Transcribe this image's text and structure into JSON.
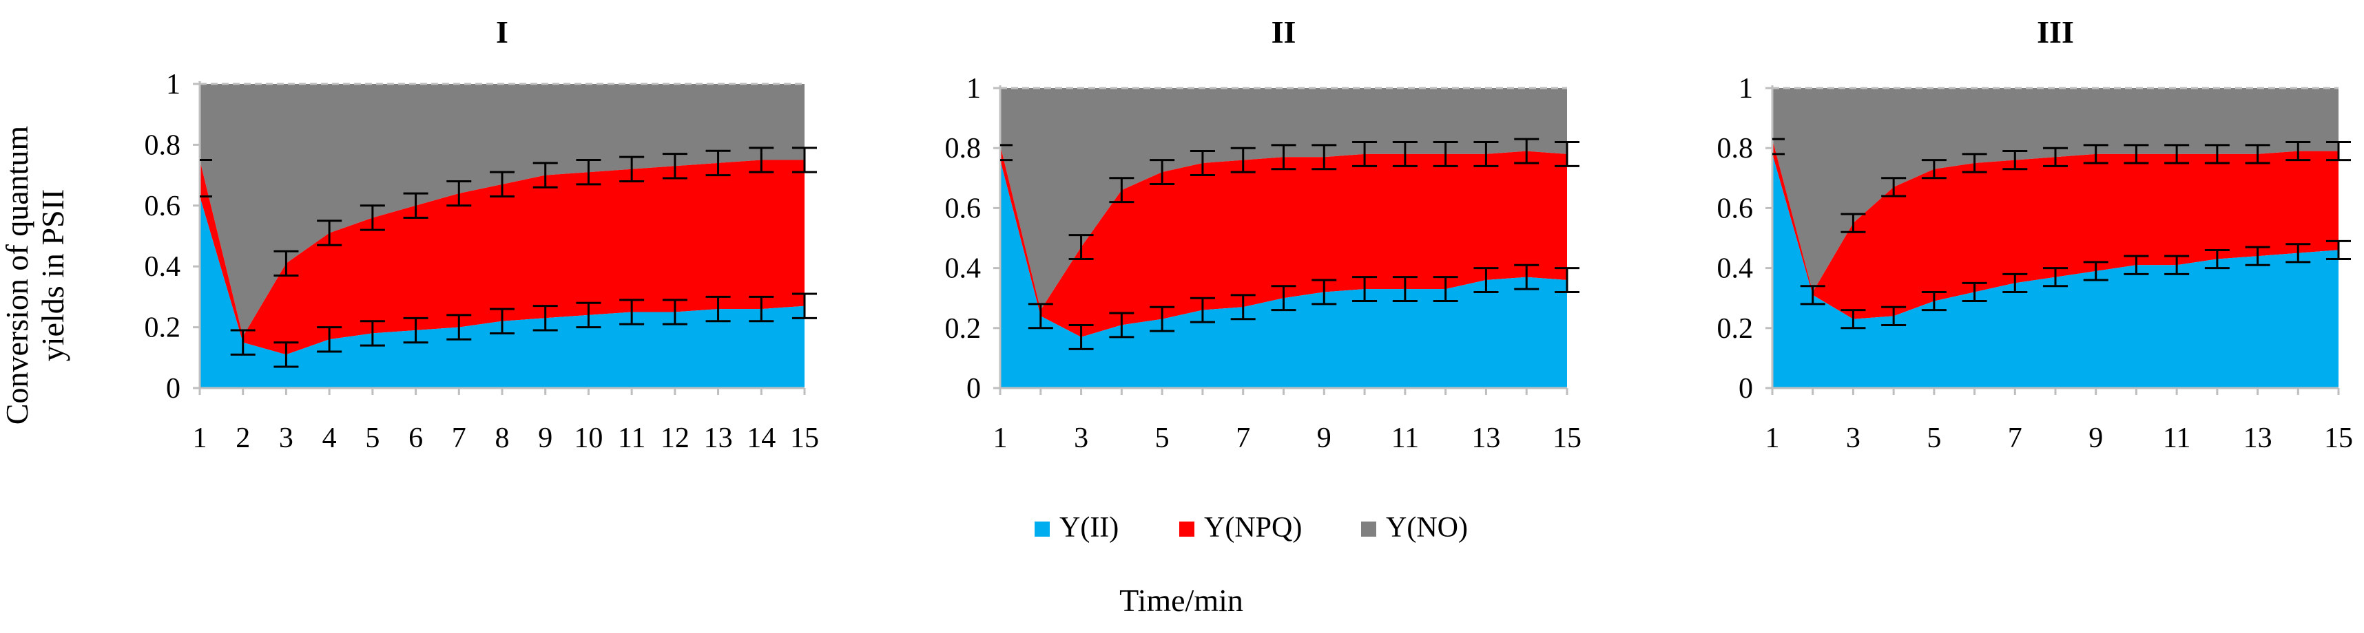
{
  "figure": {
    "ylabel_line1": "Conversion of quantum",
    "ylabel_line2": "yields in PSII",
    "xlabel": "Time/min"
  },
  "legend": {
    "items": [
      {
        "label": "Y(II)",
        "color": "#00AEEF"
      },
      {
        "label": "Y(NPQ)",
        "color": "#FF0000"
      },
      {
        "label": "Y(NO)",
        "color": "#808080"
      }
    ]
  },
  "colors": {
    "y_ii": "#00AEEF",
    "y_npq": "#FF0000",
    "y_no": "#808080",
    "error_bar": "#000000",
    "axis": "#BFBFBF"
  },
  "chart_data": [
    {
      "type": "area",
      "title": "I",
      "x": [
        1,
        2,
        3,
        4,
        5,
        6,
        7,
        8,
        9,
        10,
        11,
        12,
        13,
        14,
        15
      ],
      "xticks": [
        "1",
        "2",
        "3",
        "4",
        "5",
        "6",
        "7",
        "8",
        "9",
        "10",
        "11",
        "12",
        "13",
        "14",
        "15"
      ],
      "ylim": [
        0,
        1
      ],
      "yticks": [
        "0",
        "0.2",
        "0.4",
        "0.6",
        "0.8",
        "1"
      ],
      "stacked": true,
      "series": [
        {
          "name": "Y(II)",
          "values": [
            0.63,
            0.15,
            0.11,
            0.16,
            0.18,
            0.19,
            0.2,
            0.22,
            0.23,
            0.24,
            0.25,
            0.25,
            0.26,
            0.26,
            0.27
          ],
          "errors": [
            0,
            0.04,
            0.04,
            0.04,
            0.04,
            0.04,
            0.04,
            0.04,
            0.04,
            0.04,
            0.04,
            0.04,
            0.04,
            0.04,
            0.04
          ]
        },
        {
          "name": "Y(NPQ)",
          "values": [
            0.12,
            0.02,
            0.3,
            0.35,
            0.38,
            0.41,
            0.44,
            0.45,
            0.47,
            0.47,
            0.47,
            0.48,
            0.48,
            0.49,
            0.48
          ],
          "errors": [
            0,
            0,
            0.04,
            0.04,
            0.04,
            0.04,
            0.04,
            0.04,
            0.04,
            0.04,
            0.04,
            0.04,
            0.04,
            0.04,
            0.04
          ]
        },
        {
          "name": "Y(NO)",
          "values": [
            0.25,
            0.83,
            0.59,
            0.49,
            0.44,
            0.4,
            0.36,
            0.33,
            0.3,
            0.29,
            0.28,
            0.27,
            0.26,
            0.25,
            0.25
          ]
        }
      ]
    },
    {
      "type": "area",
      "title": "II",
      "x": [
        1,
        2,
        3,
        4,
        5,
        6,
        7,
        8,
        9,
        10,
        11,
        12,
        13,
        14,
        15
      ],
      "xticks": [
        "1",
        "3",
        "5",
        "7",
        "9",
        "11",
        "13",
        "15"
      ],
      "ylim": [
        0,
        1
      ],
      "yticks": [
        "0",
        "0.2",
        "0.4",
        "0.6",
        "0.8",
        "1"
      ],
      "stacked": true,
      "series": [
        {
          "name": "Y(II)",
          "values": [
            0.76,
            0.24,
            0.17,
            0.21,
            0.23,
            0.26,
            0.27,
            0.3,
            0.32,
            0.33,
            0.33,
            0.33,
            0.36,
            0.37,
            0.36
          ],
          "errors": [
            0,
            0.04,
            0.04,
            0.04,
            0.04,
            0.04,
            0.04,
            0.04,
            0.04,
            0.04,
            0.04,
            0.04,
            0.04,
            0.04,
            0.04
          ]
        },
        {
          "name": "Y(NPQ)",
          "values": [
            0.05,
            0.02,
            0.3,
            0.45,
            0.49,
            0.49,
            0.49,
            0.47,
            0.45,
            0.45,
            0.45,
            0.45,
            0.42,
            0.42,
            0.42
          ],
          "errors": [
            0,
            0,
            0.04,
            0.04,
            0.04,
            0.04,
            0.04,
            0.04,
            0.04,
            0.04,
            0.04,
            0.04,
            0.04,
            0.04,
            0.04
          ]
        },
        {
          "name": "Y(NO)",
          "values": [
            0.19,
            0.74,
            0.53,
            0.34,
            0.28,
            0.25,
            0.24,
            0.23,
            0.23,
            0.22,
            0.22,
            0.22,
            0.22,
            0.21,
            0.22
          ]
        }
      ]
    },
    {
      "type": "area",
      "title": "III",
      "x": [
        1,
        2,
        3,
        4,
        5,
        6,
        7,
        8,
        9,
        10,
        11,
        12,
        13,
        14,
        15
      ],
      "xticks": [
        "1",
        "3",
        "5",
        "7",
        "9",
        "11",
        "13",
        "15"
      ],
      "ylim": [
        0,
        1
      ],
      "yticks": [
        "0",
        "0.2",
        "0.4",
        "0.6",
        "0.8",
        "1"
      ],
      "stacked": true,
      "series": [
        {
          "name": "Y(II)",
          "values": [
            0.78,
            0.31,
            0.23,
            0.24,
            0.29,
            0.32,
            0.35,
            0.37,
            0.39,
            0.41,
            0.41,
            0.43,
            0.44,
            0.45,
            0.46
          ],
          "errors": [
            0,
            0.03,
            0.03,
            0.03,
            0.03,
            0.03,
            0.03,
            0.03,
            0.03,
            0.03,
            0.03,
            0.03,
            0.03,
            0.03,
            0.03
          ]
        },
        {
          "name": "Y(NPQ)",
          "values": [
            0.05,
            0.01,
            0.32,
            0.43,
            0.44,
            0.43,
            0.41,
            0.4,
            0.39,
            0.37,
            0.37,
            0.35,
            0.34,
            0.34,
            0.33
          ],
          "errors": [
            0,
            0,
            0.03,
            0.03,
            0.03,
            0.03,
            0.03,
            0.03,
            0.03,
            0.03,
            0.03,
            0.03,
            0.03,
            0.03,
            0.03
          ]
        },
        {
          "name": "Y(NO)",
          "values": [
            0.17,
            0.68,
            0.45,
            0.33,
            0.27,
            0.25,
            0.24,
            0.23,
            0.22,
            0.22,
            0.22,
            0.22,
            0.22,
            0.21,
            0.21
          ]
        }
      ]
    }
  ]
}
